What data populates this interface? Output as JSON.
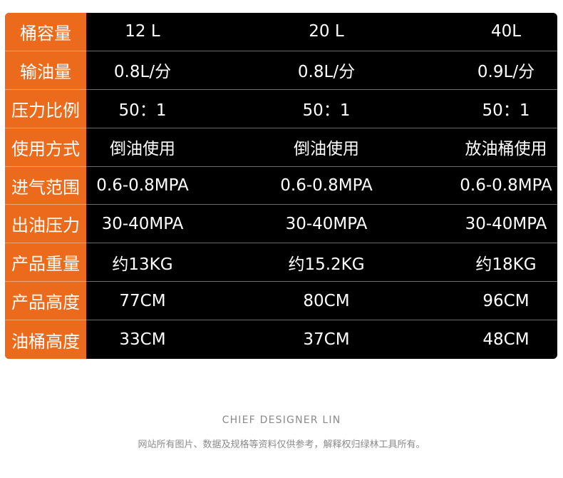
{
  "colors": {
    "label_background": "#ec6a1b",
    "table_background": "#000000",
    "text": "#ffffff",
    "footer_text": "#8a8a8a"
  },
  "rows": [
    {
      "label": "桶容量",
      "values": [
        "12 L",
        "20 L",
        "40L"
      ]
    },
    {
      "label": "输油量",
      "values": [
        "0.8L/分",
        "0.8L/分",
        "0.9L/分"
      ]
    },
    {
      "label": "压力比例",
      "values": [
        "50：1",
        "50：1",
        "50：1"
      ]
    },
    {
      "label": "使用方式",
      "values": [
        "倒油使用",
        "倒油使用",
        "放油桶使用"
      ]
    },
    {
      "label": "进气范围",
      "values": [
        "0.6-0.8MPA",
        "0.6-0.8MPA",
        "0.6-0.8MPA"
      ]
    },
    {
      "label": "出油压力",
      "values": [
        "30-40MPA",
        "30-40MPA",
        "30-40MPA"
      ]
    },
    {
      "label": "产品重量",
      "values": [
        "约13KG",
        "约15.2KG",
        "约18KG"
      ]
    },
    {
      "label": "产品高度",
      "values": [
        "77CM",
        "80CM",
        "96CM"
      ]
    },
    {
      "label": "油桶高度",
      "values": [
        "33CM",
        "37CM",
        "48CM"
      ]
    }
  ],
  "footer": {
    "designer": "CHIEF  DESIGNER  LIN",
    "note": "网站所有图片、数据及规格等资料仅供参考，解释权归绿林工具所有。"
  }
}
